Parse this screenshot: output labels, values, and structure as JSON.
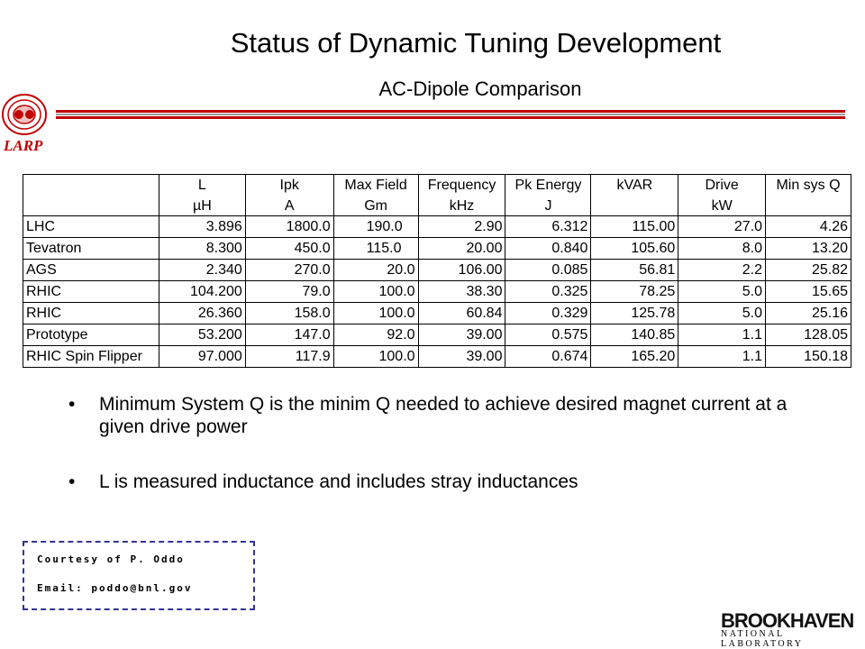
{
  "header": {
    "title": "Status of Dynamic Tuning Development",
    "subtitle": "AC-Dipole Comparison",
    "logo": "LARP"
  },
  "table": {
    "header": [
      [
        "",
        ""
      ],
      [
        "L",
        "µH"
      ],
      [
        "Ipk",
        "A"
      ],
      [
        "Max Field",
        "Gm"
      ],
      [
        "Frequency",
        "kHz"
      ],
      [
        "Pk Energy",
        "J"
      ],
      [
        "kVAR",
        ""
      ],
      [
        "Drive",
        "kW"
      ],
      [
        "Min sys Q",
        ""
      ]
    ],
    "rows": [
      [
        "LHC",
        "3.896",
        "1800.0",
        "190.0",
        "2.90",
        "6.312",
        "115.00",
        "27.0",
        "4.26"
      ],
      [
        "Tevatron",
        "8.300",
        "450.0",
        "115.0",
        "20.00",
        "0.840",
        "105.60",
        "8.0",
        "13.20"
      ],
      [
        "AGS",
        "2.340",
        "270.0",
        "20.0",
        "106.00",
        "0.085",
        "56.81",
        "2.2",
        "25.82"
      ],
      [
        "RHIC",
        "104.200",
        "79.0",
        "100.0",
        "38.30",
        "0.325",
        "78.25",
        "5.0",
        "15.65"
      ],
      [
        "RHIC",
        "26.360",
        "158.0",
        "100.0",
        "60.84",
        "0.329",
        "125.78",
        "5.0",
        "25.16"
      ],
      [
        "Prototype",
        "53.200",
        "147.0",
        "92.0",
        "39.00",
        "0.575",
        "140.85",
        "1.1",
        "128.05"
      ],
      [
        "RHIC Spin Flipper",
        "97.000",
        "117.9",
        "100.0",
        "39.00",
        "0.674",
        "165.20",
        "1.1",
        "150.18"
      ]
    ]
  },
  "bullets": [
    "Minimum System Q is the minim Q needed to achieve desired magnet current at a given drive power",
    "L is measured inductance and includes stray inductances"
  ],
  "credit": [
    "Courtesy of P. Oddo",
    "Email: poddo@bnl.gov"
  ],
  "footer": {
    "lab": "BROOKHAVEN",
    "sub": "NATIONAL LABORATORY"
  }
}
